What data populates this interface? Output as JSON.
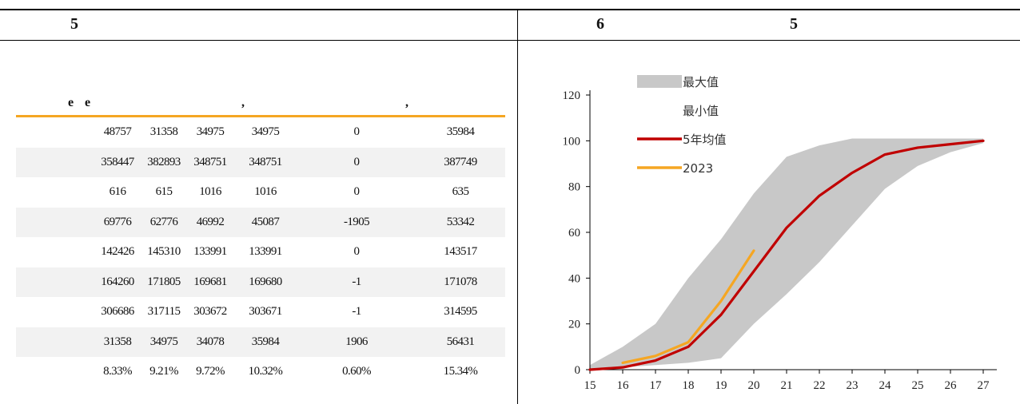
{
  "header": {
    "left_label": "5",
    "right_label_a": "6",
    "right_label_b": "5"
  },
  "table": {
    "header_fragments": [
      "e",
      "e",
      ",",
      ","
    ],
    "rows": [
      [
        "48757",
        "31358",
        "34975",
        "34975",
        "0",
        "35984"
      ],
      [
        "358447",
        "382893",
        "348751",
        "348751",
        "0",
        "387749"
      ],
      [
        "616",
        "615",
        "1016",
        "1016",
        "0",
        "635"
      ],
      [
        "69776",
        "62776",
        "46992",
        "45087",
        "-1905",
        "53342"
      ],
      [
        "142426",
        "145310",
        "133991",
        "133991",
        "0",
        "143517"
      ],
      [
        "164260",
        "171805",
        "169681",
        "169680",
        "-1",
        "171078"
      ],
      [
        "306686",
        "317115",
        "303672",
        "303671",
        "-1",
        "314595"
      ],
      [
        "31358",
        "34975",
        "34078",
        "35984",
        "1906",
        "56431"
      ],
      [
        "8.33%",
        "9.21%",
        "9.72%",
        "10.32%",
        "0.60%",
        "15.34%"
      ]
    ]
  },
  "chart_data": {
    "type": "area",
    "x": [
      15,
      16,
      17,
      18,
      19,
      20,
      21,
      22,
      23,
      24,
      25,
      26,
      27
    ],
    "ylim": [
      0,
      120
    ],
    "yticks": [
      0,
      20,
      40,
      60,
      80,
      100,
      120
    ],
    "grid": false,
    "legend_position": "top-center",
    "series": [
      {
        "name": "最大值",
        "kind": "band-upper",
        "color": "#c8c8c8",
        "values": [
          2,
          10,
          20,
          40,
          57,
          77,
          93,
          98,
          101,
          101,
          101,
          101,
          101
        ]
      },
      {
        "name": "最小值",
        "kind": "band-lower",
        "color": "#ffffff",
        "values": [
          0,
          1,
          2,
          3,
          5,
          20,
          33,
          47,
          63,
          79,
          89,
          95,
          99
        ]
      },
      {
        "name": "5年均值",
        "kind": "line",
        "color": "#c00000",
        "values": [
          0,
          1,
          4,
          10,
          24,
          43,
          62,
          76,
          86,
          94,
          97,
          98.5,
          100
        ]
      },
      {
        "name": "2023",
        "kind": "line",
        "color": "#f5a623",
        "values": [
          null,
          3,
          6,
          12,
          30,
          52,
          null,
          null,
          null,
          null,
          null,
          null,
          null
        ]
      }
    ]
  }
}
